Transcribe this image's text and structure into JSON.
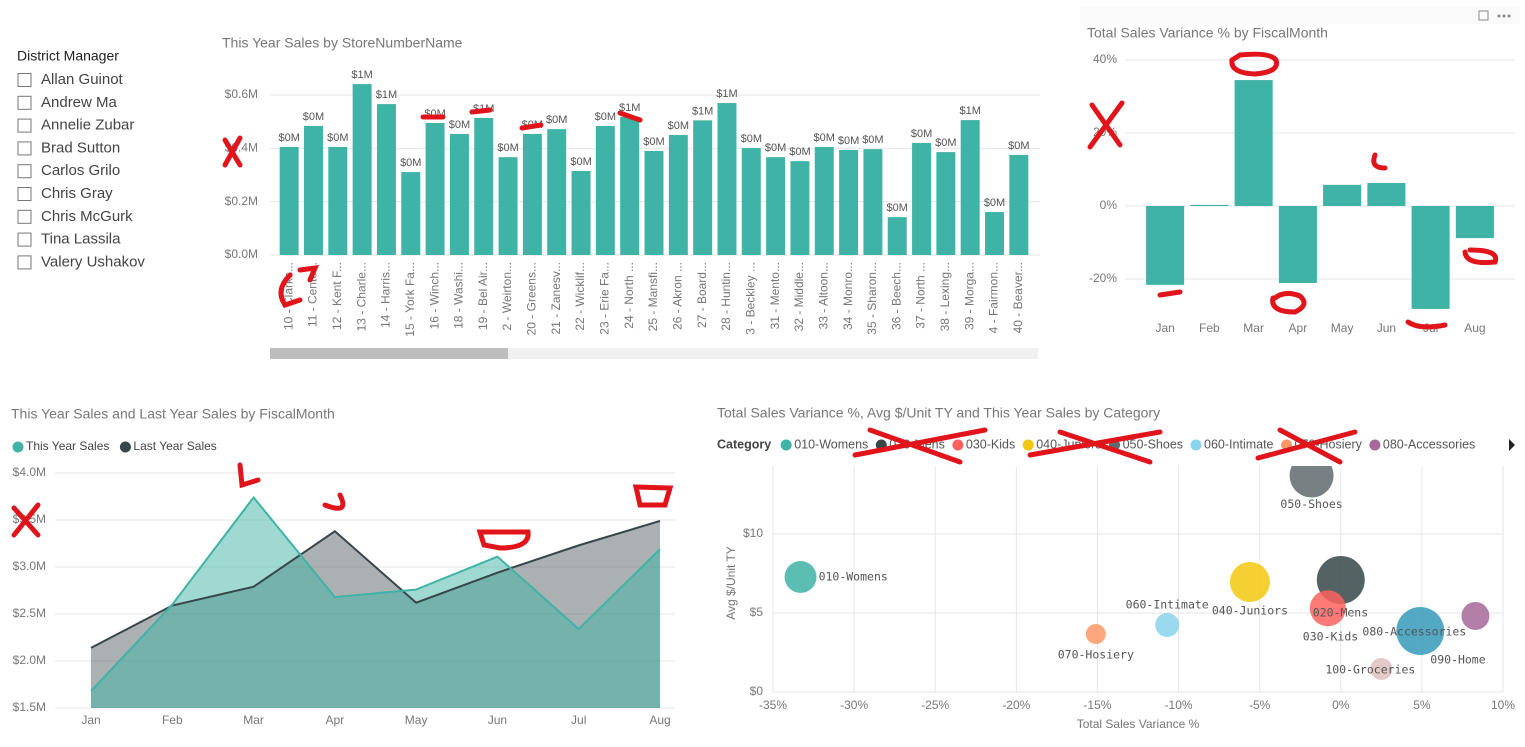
{
  "slicer": {
    "title": "District Manager",
    "items": [
      "Allan Guinot",
      "Andrew Ma",
      "Annelie Zubar",
      "Brad Sutton",
      "Carlos Grilo",
      "Chris Gray",
      "Chris McGurk",
      "Tina Lassila",
      "Valery Ushakov"
    ]
  },
  "chart_data": [
    {
      "type": "bar",
      "title": "This Year Sales by StoreNumberName",
      "categories": [
        "10 - Clarks...",
        "11 - Cento...",
        "12 - Kent F...",
        "13 - Charle...",
        "14 - Harris...",
        "15 - York Fa...",
        "16 - Winch...",
        "18 - Washi...",
        "19 - Bel Air...",
        "2 - Weirton...",
        "20 - Greens...",
        "21 - Zanesv...",
        "22 - Wicklif...",
        "23 - Erie Fa...",
        "24 - North ...",
        "25 - Mansfi...",
        "26 - Akron ...",
        "27 - Board...",
        "28 - Huntin...",
        "3 - Beckley ...",
        "31 - Mento...",
        "32 - Middle...",
        "33 - Altoon...",
        "34 - Monro...",
        "35 - Sharon...",
        "36 - Beech...",
        "37 - North ...",
        "38 - Lexing...",
        "39 - Morga...",
        "4 - Fairmon...",
        "40 - Beaver..."
      ],
      "values": [
        405000,
        484000,
        405000,
        641000,
        566000,
        311000,
        495000,
        454000,
        514000,
        367000,
        454000,
        472000,
        315000,
        484000,
        518000,
        390000,
        450000,
        505000,
        570000,
        401000,
        367000,
        352000,
        405000,
        394000,
        397000,
        142000,
        420000,
        386000,
        506000,
        161000,
        375000
      ],
      "value_labels": [
        "$0M",
        "$0M",
        "$0M",
        "$1M",
        "$1M",
        "$0M",
        "$0M",
        "$0M",
        "$1M",
        "$0M",
        "$0M",
        "$0M",
        "$0M",
        "$0M",
        "$1M",
        "$0M",
        "$0M",
        "$1M",
        "$1M",
        "$0M",
        "$0M",
        "$0M",
        "$0M",
        "$0M",
        "$0M",
        "$0M",
        "$0M",
        "$0M",
        "$1M",
        "$0M",
        "$0M"
      ],
      "color": "#3fb3a6",
      "ylim": [
        0,
        650000
      ],
      "yticks": [
        {
          "value": 0,
          "label": "$0.0M"
        },
        {
          "value": 200000,
          "label": "$0.2M"
        },
        {
          "value": 400000,
          "label": "$0.4M"
        },
        {
          "value": 600000,
          "label": "$0.6M"
        }
      ],
      "grid": true
    },
    {
      "type": "bar",
      "title": "Total Sales Variance % by FiscalMonth",
      "categories": [
        "Jan",
        "Feb",
        "Mar",
        "Apr",
        "May",
        "Jun",
        "Jul",
        "Aug"
      ],
      "values": [
        -21.6,
        0.3,
        34.5,
        -21.1,
        5.8,
        6.3,
        -28.2,
        -8.8
      ],
      "color": "#3fb3a6",
      "ylim": [
        -30,
        40
      ],
      "yticks": [
        {
          "value": -20,
          "label": "-20%"
        },
        {
          "value": 0,
          "label": "0%"
        },
        {
          "value": 20,
          "label": "20%"
        },
        {
          "value": 40,
          "label": "40%"
        }
      ],
      "grid": true
    },
    {
      "type": "area",
      "title": "This Year Sales and Last Year Sales by FiscalMonth",
      "categories": [
        "Jan",
        "Feb",
        "Mar",
        "Apr",
        "May",
        "Jun",
        "Jul",
        "Aug"
      ],
      "series": [
        {
          "name": "This Year Sales",
          "color": "#3fb3a6",
          "values": [
            1680000,
            2600000,
            3740000,
            2680000,
            2760000,
            3110000,
            2340000,
            3190000
          ]
        },
        {
          "name": "Last Year Sales",
          "color": "#374649",
          "values": [
            2140000,
            2590000,
            2790000,
            3380000,
            2620000,
            2940000,
            3230000,
            3490000
          ]
        }
      ],
      "ylim": [
        1500000,
        4000000
      ],
      "yticks": [
        {
          "value": 1500000,
          "label": "$1.5M"
        },
        {
          "value": 2000000,
          "label": "$2.0M"
        },
        {
          "value": 2500000,
          "label": "$2.5M"
        },
        {
          "value": 3000000,
          "label": "$3.0M"
        },
        {
          "value": 3500000,
          "label": "$3.5M"
        },
        {
          "value": 4000000,
          "label": "$4.0M"
        }
      ],
      "grid": true,
      "legend": "top-left"
    },
    {
      "type": "scatter",
      "title": "Total Sales Variance %, Avg $/Unit TY and This Year Sales by Category",
      "legend_title": "Category",
      "categories": [
        "010-Womens",
        "020-Mens",
        "030-Kids",
        "040-Juniors",
        "050-Shoes",
        "060-Intimate",
        "070-Hosiery",
        "080-Accessories",
        "090-Home",
        "100-Groceries"
      ],
      "x": [
        -33.3,
        0.0,
        -0.8,
        -5.6,
        -1.8,
        -10.7,
        -15.1,
        8.3,
        4.9,
        2.5
      ],
      "y": [
        7.28,
        7.09,
        5.3,
        6.96,
        13.7,
        4.24,
        3.67,
        4.81,
        3.86,
        1.46
      ],
      "size": [
        1330000,
        3000000,
        1690000,
        2080000,
        2520000,
        750000,
        520000,
        1020000,
        3000000,
        630000
      ],
      "colors": [
        "#3fb3a6",
        "#374649",
        "#fd625e",
        "#f2c80f",
        "#5f6b6d",
        "#8ad4eb",
        "#fe9666",
        "#a66999",
        "#3599b8",
        "#dfbfbf"
      ],
      "xlabel": "Total Sales Variance %",
      "ylabel": "Avg $/Unit TY",
      "xlim": [
        -35,
        10
      ],
      "xticks": [
        {
          "value": -35,
          "label": "-35%"
        },
        {
          "value": -30,
          "label": "-30%"
        },
        {
          "value": -25,
          "label": "-25%"
        },
        {
          "value": -20,
          "label": "-20%"
        },
        {
          "value": -15,
          "label": "-15%"
        },
        {
          "value": -10,
          "label": "-10%"
        },
        {
          "value": -5,
          "label": "-5%"
        },
        {
          "value": 0,
          "label": "0%"
        },
        {
          "value": 5,
          "label": "5%"
        },
        {
          "value": 10,
          "label": "10%"
        }
      ],
      "ylim": [
        0,
        14.2
      ],
      "yticks": [
        {
          "value": 0,
          "label": "$0"
        },
        {
          "value": 5,
          "label": "$5"
        },
        {
          "value": 10,
          "label": "$10"
        }
      ],
      "grid": true,
      "legend": "top-left"
    }
  ]
}
